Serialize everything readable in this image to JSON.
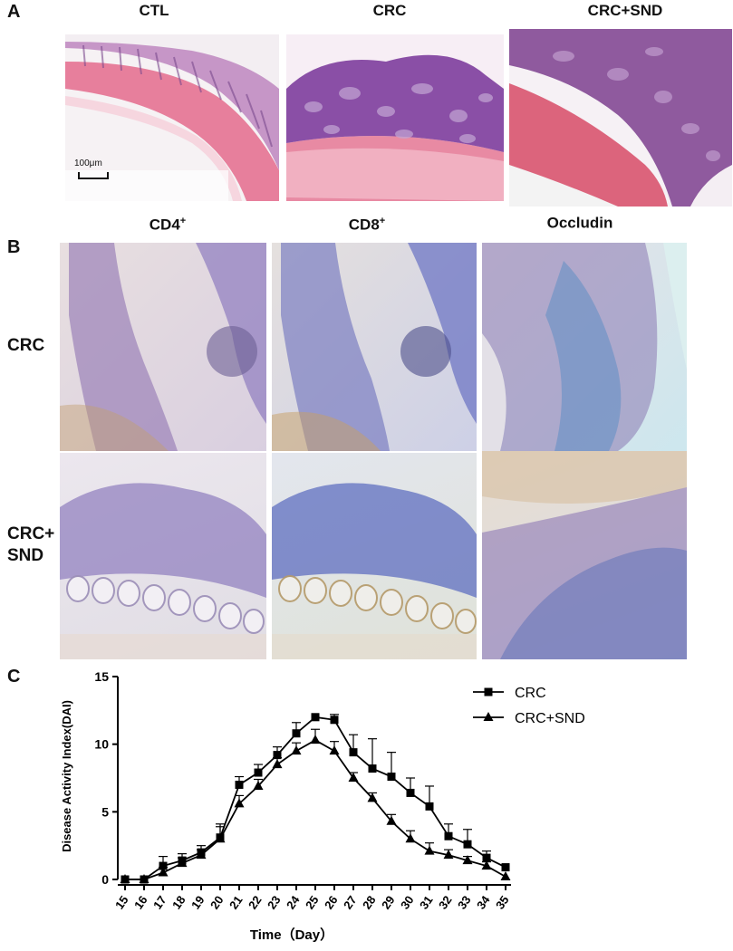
{
  "panel_a": {
    "letter": "A",
    "columns": [
      "CTL",
      "CRC",
      "CRC+SND"
    ],
    "scale_bar_label": "100μm"
  },
  "panel_b": {
    "letter": "B",
    "columns": [
      {
        "base": "CD4",
        "sup": "+"
      },
      {
        "base": "CD8",
        "sup": "+"
      },
      {
        "base": "Occludin",
        "sup": ""
      }
    ],
    "rows": [
      {
        "line1": "CRC",
        "line2": ""
      },
      {
        "line1": "CRC+",
        "line2": "SND"
      }
    ]
  },
  "panel_c": {
    "letter": "C"
  },
  "chart_data": {
    "type": "line",
    "title": "",
    "xlabel": "Time（Day）",
    "ylabel": "Disease Activity Index(DAI)",
    "x": [
      15,
      16,
      17,
      18,
      19,
      20,
      21,
      22,
      23,
      24,
      25,
      26,
      27,
      28,
      29,
      30,
      31,
      32,
      33,
      34,
      35
    ],
    "ylim": [
      0,
      15
    ],
    "yticks": [
      0,
      5,
      10,
      15
    ],
    "legend_position": "top-right",
    "series": [
      {
        "name": "CRC",
        "marker": "square",
        "values": [
          0,
          0,
          1.0,
          1.4,
          2.0,
          3.1,
          7.0,
          7.9,
          9.2,
          10.8,
          12.0,
          11.8,
          9.4,
          8.2,
          7.6,
          6.4,
          5.4,
          3.2,
          2.6,
          1.6,
          0.9
        ],
        "errors": [
          0,
          0,
          0.7,
          0.5,
          0.5,
          1.0,
          0.6,
          0.6,
          0.6,
          0.8,
          0,
          0.4,
          1.3,
          2.2,
          1.8,
          1.1,
          1.5,
          0.9,
          1.1,
          0.5,
          0
        ]
      },
      {
        "name": "CRC+SND",
        "marker": "triangle",
        "values": [
          0,
          0,
          0.5,
          1.2,
          1.8,
          3.0,
          5.6,
          6.9,
          8.5,
          9.5,
          10.3,
          9.5,
          7.5,
          6.0,
          4.3,
          3.0,
          2.1,
          1.8,
          1.4,
          1.0,
          0.2
        ],
        "errors": [
          0,
          0,
          0.4,
          0.4,
          0.4,
          0.9,
          0.6,
          0.5,
          0.5,
          0.6,
          0.8,
          0.7,
          0.4,
          0.4,
          0.5,
          0.6,
          0.6,
          0.4,
          0.3,
          0.3,
          0
        ]
      }
    ]
  }
}
